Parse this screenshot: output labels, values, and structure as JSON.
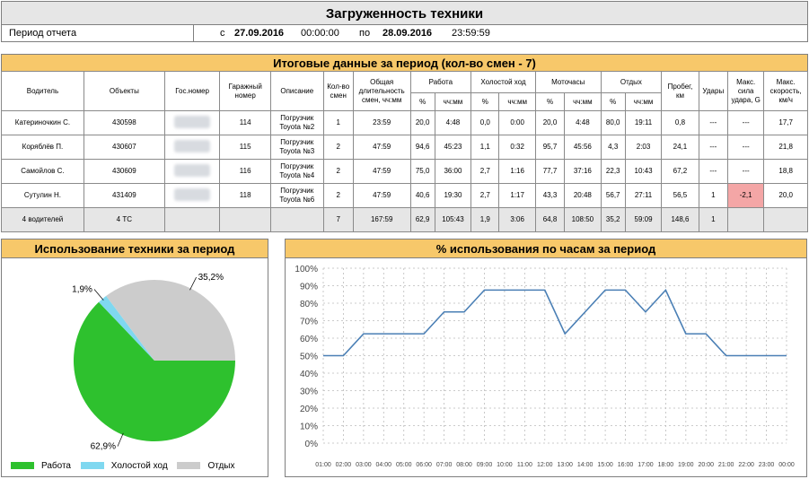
{
  "header": {
    "title": "Загруженность техники",
    "period_label": "Период отчета",
    "from_prefix": "с",
    "from_date": "27.09.2016",
    "from_time": "00:00:00",
    "to_prefix": "по",
    "to_date": "28.09.2016",
    "to_time": "23:59:59"
  },
  "table": {
    "title": "Итоговые данные за период (кол-во смен -  7)",
    "headers": {
      "driver": "Водитель",
      "object": "Объекты",
      "plate": "Гос.номер",
      "garage": "Гаражный номер",
      "desc": "Описание",
      "shifts": "Кол-во смен",
      "total": "Общая длительность смен, чч:мм",
      "work": "Работа",
      "idle": "Холостой ход",
      "engine": "Моточасы",
      "rest": "Отдых",
      "mileage": "Пробег, км",
      "hits": "Удары",
      "max_force": "Макс. сила удара, G",
      "max_speed": "Макс. скорость, км/ч",
      "pct": "%",
      "hhmm": "чч:мм"
    },
    "rows": [
      {
        "driver": "Катериночкин С.",
        "object": "430598",
        "garage": "114",
        "desc": "Погрузчик Toyota №2",
        "shifts": "1",
        "total": "23:59",
        "work_pct": "20,0",
        "work_t": "4:48",
        "idle_pct": "0,0",
        "idle_t": "0:00",
        "eng_pct": "20,0",
        "eng_t": "4:48",
        "rest_pct": "80,0",
        "rest_t": "19:11",
        "mileage": "0,8",
        "hits": "---",
        "force": "---",
        "speed": "17,7"
      },
      {
        "driver": "Коряблёв П.",
        "object": "430607",
        "garage": "115",
        "desc": "Погрузчик Toyota №3",
        "shifts": "2",
        "total": "47:59",
        "work_pct": "94,6",
        "work_t": "45:23",
        "idle_pct": "1,1",
        "idle_t": "0:32",
        "eng_pct": "95,7",
        "eng_t": "45:56",
        "rest_pct": "4,3",
        "rest_t": "2:03",
        "mileage": "24,1",
        "hits": "---",
        "force": "---",
        "speed": "21,8"
      },
      {
        "driver": "Самойлов С.",
        "object": "430609",
        "garage": "116",
        "desc": "Погрузчик Toyota №4",
        "shifts": "2",
        "total": "47:59",
        "work_pct": "75,0",
        "work_t": "36:00",
        "idle_pct": "2,7",
        "idle_t": "1:16",
        "eng_pct": "77,7",
        "eng_t": "37:16",
        "rest_pct": "22,3",
        "rest_t": "10:43",
        "mileage": "67,2",
        "hits": "---",
        "force": "---",
        "speed": "18,8"
      },
      {
        "driver": "Сутулин Н.",
        "object": "431409",
        "garage": "118",
        "desc": "Погрузчик Toyota №6",
        "shifts": "2",
        "total": "47:59",
        "work_pct": "40,6",
        "work_t": "19:30",
        "idle_pct": "2,7",
        "idle_t": "1:17",
        "eng_pct": "43,3",
        "eng_t": "20:48",
        "rest_pct": "56,7",
        "rest_t": "27:11",
        "mileage": "56,5",
        "hits": "1",
        "force": "-2,1",
        "speed": "20,0"
      }
    ],
    "totals": {
      "driver": "4 водителей",
      "object": "4 ТС",
      "shifts": "7",
      "total": "167:59",
      "work_pct": "62,9",
      "work_t": "105:43",
      "idle_pct": "1,9",
      "idle_t": "3:06",
      "eng_pct": "64,8",
      "eng_t": "108:50",
      "rest_pct": "35,2",
      "rest_t": "59:09",
      "mileage": "148,6",
      "hits": "1"
    }
  },
  "pie": {
    "title": "Использование техники за период",
    "colors": {
      "work": "#2ec12e",
      "idle": "#7fd8f0",
      "rest": "#cccccc"
    },
    "legend": {
      "work": "Работа",
      "idle": "Холостой ход",
      "rest": "Отдых"
    },
    "labels": {
      "work": "62,9%",
      "idle": "1,9%",
      "rest": "35,2%"
    }
  },
  "line": {
    "title": "% использования по часам за период"
  },
  "chart_data": [
    {
      "type": "pie",
      "title": "Использование техники за период",
      "categories": [
        "Работа",
        "Холостой ход",
        "Отдых"
      ],
      "values": [
        62.9,
        1.9,
        35.2
      ]
    },
    {
      "type": "line",
      "title": "% использования по часам за период",
      "x": [
        "01:00",
        "02:00",
        "03:00",
        "04:00",
        "05:00",
        "06:00",
        "07:00",
        "08:00",
        "09:00",
        "10:00",
        "11:00",
        "12:00",
        "13:00",
        "14:00",
        "15:00",
        "16:00",
        "17:00",
        "18:00",
        "19:00",
        "20:00",
        "21:00",
        "22:00",
        "23:00",
        "00:00"
      ],
      "series": [
        {
          "values": [
            50,
            50,
            62.5,
            62.5,
            62.5,
            62.5,
            75,
            75,
            87.5,
            87.5,
            87.5,
            87.5,
            62.5,
            75,
            87.5,
            87.5,
            75,
            87.5,
            62.5,
            62.5,
            50,
            50,
            50,
            50
          ]
        }
      ],
      "ylim": [
        0,
        100
      ],
      "yticks": [
        "0%",
        "10%",
        "20%",
        "30%",
        "40%",
        "50%",
        "60%",
        "70%",
        "80%",
        "90%",
        "100%"
      ],
      "grid": true,
      "line_color": "#4a7fb5"
    }
  ]
}
